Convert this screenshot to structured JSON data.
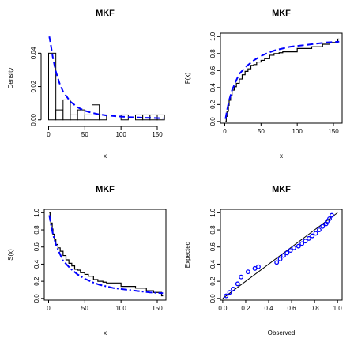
{
  "chart_data": [
    {
      "id": "density",
      "type": "bar",
      "title": "MKF",
      "xlabel": "x",
      "ylabel": "Density",
      "xlim": [
        0,
        160
      ],
      "ylim": [
        0,
        0.05
      ],
      "xticks": [
        "0",
        "50",
        "100",
        "150"
      ],
      "yticks": [
        "0.00",
        "0.02",
        "0.04"
      ],
      "frame": false,
      "bins": [
        {
          "from": 0,
          "to": 10,
          "value": 0.04
        },
        {
          "from": 10,
          "to": 20,
          "value": 0.006
        },
        {
          "from": 20,
          "to": 30,
          "value": 0.012
        },
        {
          "from": 30,
          "to": 40,
          "value": 0.003
        },
        {
          "from": 40,
          "to": 50,
          "value": 0.006
        },
        {
          "from": 50,
          "to": 60,
          "value": 0.003
        },
        {
          "from": 60,
          "to": 70,
          "value": 0.009
        },
        {
          "from": 70,
          "to": 80,
          "value": 0.003
        },
        {
          "from": 80,
          "to": 90,
          "value": 0.0
        },
        {
          "from": 90,
          "to": 100,
          "value": 0.0
        },
        {
          "from": 100,
          "to": 110,
          "value": 0.003
        },
        {
          "from": 110,
          "to": 120,
          "value": 0.0
        },
        {
          "from": 120,
          "to": 130,
          "value": 0.003
        },
        {
          "from": 130,
          "to": 140,
          "value": 0.003
        },
        {
          "from": 140,
          "to": 150,
          "value": 0.003
        },
        {
          "from": 150,
          "to": 160,
          "value": 0.003
        }
      ],
      "fitted_curve": {
        "style": "dashed",
        "color": "#0000ff",
        "x": [
          1,
          3,
          6,
          10,
          15,
          20,
          30,
          40,
          50,
          60,
          70,
          80,
          90,
          100,
          110,
          120,
          130,
          140,
          150,
          158
        ],
        "y": [
          0.05,
          0.045,
          0.037,
          0.029,
          0.022,
          0.017,
          0.011,
          0.0075,
          0.0055,
          0.0042,
          0.0033,
          0.0027,
          0.0023,
          0.002,
          0.0017,
          0.0015,
          0.0013,
          0.0012,
          0.0011,
          0.001
        ]
      }
    },
    {
      "id": "cdf",
      "type": "line",
      "title": "MKF",
      "xlabel": "x",
      "ylabel": "F(x)",
      "xlim": [
        -6,
        162
      ],
      "ylim": [
        -0.02,
        1.04
      ],
      "xticks": [
        "0",
        "50",
        "100",
        "150"
      ],
      "yticks": [
        "0.0",
        "0.2",
        "0.4",
        "0.6",
        "0.8",
        "1.0"
      ],
      "frame": true,
      "empirical_step": {
        "color": "#000000",
        "x": [
          1,
          2,
          3,
          5,
          6,
          8,
          10,
          13,
          16,
          20,
          24,
          28,
          32,
          36,
          40,
          44,
          50,
          55,
          62,
          68,
          75,
          80,
          90,
          100,
          105,
          120,
          125,
          135,
          140,
          145,
          150,
          156
        ],
        "y": [
          0.0,
          0.06,
          0.12,
          0.19,
          0.25,
          0.31,
          0.37,
          0.41,
          0.45,
          0.5,
          0.55,
          0.59,
          0.62,
          0.66,
          0.67,
          0.7,
          0.72,
          0.74,
          0.78,
          0.8,
          0.81,
          0.82,
          0.82,
          0.86,
          0.86,
          0.88,
          0.88,
          0.91,
          0.91,
          0.93,
          0.93,
          0.97
        ]
      },
      "fitted_curve": {
        "style": "dashed",
        "color": "#0000ff",
        "x": [
          1,
          3,
          6,
          10,
          15,
          20,
          30,
          40,
          50,
          60,
          70,
          80,
          90,
          100,
          110,
          120,
          130,
          140,
          150,
          158
        ],
        "y": [
          0.03,
          0.13,
          0.25,
          0.37,
          0.47,
          0.56,
          0.65,
          0.72,
          0.77,
          0.81,
          0.84,
          0.86,
          0.88,
          0.89,
          0.9,
          0.91,
          0.92,
          0.93,
          0.935,
          0.94
        ]
      }
    },
    {
      "id": "survival",
      "type": "line",
      "title": "MKF",
      "xlabel": "x",
      "ylabel": "S(x)",
      "xlim": [
        -6,
        162
      ],
      "ylim": [
        -0.02,
        1.04
      ],
      "xticks": [
        "0",
        "50",
        "100",
        "150"
      ],
      "yticks": [
        "0.0",
        "0.2",
        "0.4",
        "0.6",
        "0.8",
        "1.0"
      ],
      "frame": true,
      "empirical_step": {
        "color": "#000000",
        "x": [
          1,
          2,
          3,
          5,
          6,
          8,
          10,
          13,
          16,
          20,
          24,
          28,
          32,
          36,
          40,
          44,
          50,
          55,
          62,
          68,
          75,
          80,
          90,
          100,
          105,
          120,
          125,
          135,
          140,
          145,
          150,
          156
        ],
        "y": [
          1.0,
          0.94,
          0.88,
          0.81,
          0.75,
          0.69,
          0.63,
          0.59,
          0.55,
          0.5,
          0.45,
          0.41,
          0.38,
          0.34,
          0.33,
          0.3,
          0.28,
          0.26,
          0.22,
          0.2,
          0.19,
          0.18,
          0.18,
          0.14,
          0.14,
          0.12,
          0.12,
          0.09,
          0.09,
          0.07,
          0.07,
          0.03
        ]
      },
      "fitted_curve": {
        "style": "dashdot",
        "color": "#0000ff",
        "x": [
          1,
          3,
          6,
          10,
          15,
          20,
          30,
          40,
          50,
          60,
          70,
          80,
          90,
          100,
          110,
          120,
          130,
          140,
          150,
          158
        ],
        "y": [
          0.97,
          0.87,
          0.75,
          0.63,
          0.53,
          0.44,
          0.35,
          0.28,
          0.23,
          0.19,
          0.16,
          0.14,
          0.12,
          0.11,
          0.1,
          0.09,
          0.08,
          0.07,
          0.065,
          0.06
        ]
      }
    },
    {
      "id": "pp",
      "type": "scatter",
      "title": "MKF",
      "xlabel": "Observed",
      "ylabel": "Expected",
      "xlim": [
        -0.02,
        1.04
      ],
      "ylim": [
        -0.02,
        1.04
      ],
      "xticks": [
        "0.0",
        "0.2",
        "0.4",
        "0.6",
        "0.8",
        "1.0"
      ],
      "yticks": [
        "0.0",
        "0.2",
        "0.4",
        "0.6",
        "0.8",
        "1.0"
      ],
      "frame": true,
      "reference_line": {
        "x": [
          0,
          1
        ],
        "y": [
          0,
          1
        ],
        "color": "#000000"
      },
      "points": {
        "color": "#0000ff",
        "x": [
          0.03,
          0.06,
          0.09,
          0.13,
          0.16,
          0.22,
          0.28,
          0.31,
          0.47,
          0.5,
          0.53,
          0.56,
          0.59,
          0.62,
          0.66,
          0.69,
          0.72,
          0.75,
          0.78,
          0.81,
          0.84,
          0.87,
          0.9,
          0.91,
          0.93,
          0.95
        ],
        "y": [
          0.03,
          0.07,
          0.11,
          0.17,
          0.25,
          0.31,
          0.35,
          0.37,
          0.42,
          0.46,
          0.5,
          0.53,
          0.56,
          0.59,
          0.61,
          0.64,
          0.67,
          0.7,
          0.73,
          0.76,
          0.8,
          0.84,
          0.87,
          0.9,
          0.93,
          0.97
        ]
      }
    }
  ]
}
